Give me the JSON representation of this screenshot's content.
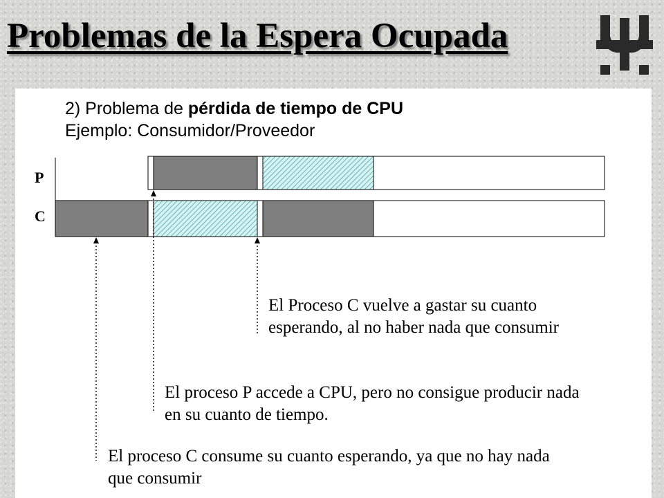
{
  "title": "Problemas de la Espera Ocupada",
  "logo": {
    "icon": "utn-logo-icon"
  },
  "heading": {
    "line1_prefix": "2) Problema de ",
    "line1_bold": "pérdida de tiempo de CPU",
    "line2": "Ejemplo: Consumidor/Proveedor"
  },
  "timeline": {
    "rows": [
      "P",
      "C"
    ],
    "colors": {
      "busy": "#7f7f7f",
      "hatch_fill": "#d6f3f3",
      "hatch_line": "#3a9a9a",
      "empty": "#ffffff"
    }
  },
  "notes": {
    "c_waste": [
      "El Proceso C vuelve a gastar su cuanto",
      "esperando, al no haber nada que consumir"
    ],
    "p_access": [
      "El proceso P accede a CPU, pero no consigue producir nada",
      "en su cuanto de tiempo."
    ],
    "c_consume": [
      "El proceso C consume su cuanto esperando, ya que no hay nada",
      "que consumir"
    ]
  }
}
